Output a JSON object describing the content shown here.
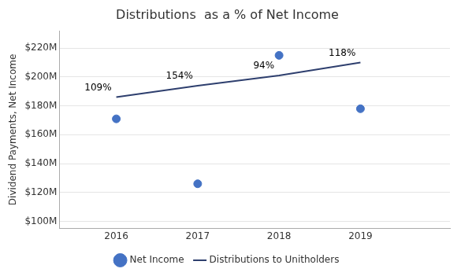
{
  "chart_data": {
    "type": "line",
    "title": "Distributions  as a % of Net Income",
    "ylabel": "Dividend Payments, Net Income",
    "x": [
      2016,
      2017,
      2018,
      2019
    ],
    "series": [
      {
        "name": "Distributions to Unitholders",
        "type": "line",
        "color": "#2e3f6e",
        "marker": "none",
        "line_style": "solid",
        "values": [
          186,
          194,
          201,
          210
        ]
      },
      {
        "name": "Net Income",
        "type": "scatter",
        "color": "#4472c4",
        "marker": "circle",
        "values": [
          171,
          126,
          215,
          178
        ]
      }
    ],
    "annotations": [
      {
        "x": 2016,
        "text": "109%"
      },
      {
        "x": 2017,
        "text": "154%"
      },
      {
        "x": 2018,
        "text": "94%"
      },
      {
        "x": 2019,
        "text": "118%"
      }
    ],
    "xlim": [
      2015.3,
      2020.1
    ],
    "xticks": [
      2016,
      2017,
      2018,
      2019
    ],
    "ylim": [
      95,
      232
    ],
    "yticks": [
      {
        "value": 100,
        "label": "$100M"
      },
      {
        "value": 120,
        "label": "$120M"
      },
      {
        "value": 140,
        "label": "$140M"
      },
      {
        "value": 160,
        "label": "$160M"
      },
      {
        "value": 180,
        "label": "$180M"
      },
      {
        "value": 200,
        "label": "$200M"
      },
      {
        "value": 220,
        "label": "$220M"
      }
    ],
    "grid": "y",
    "legend": "bottom"
  }
}
